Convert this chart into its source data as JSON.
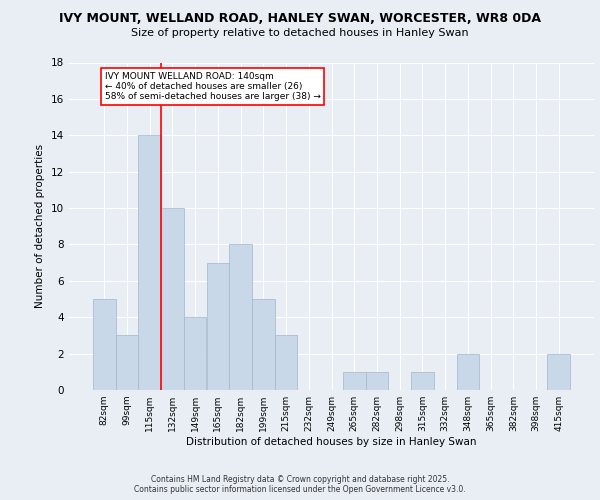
{
  "title_line1": "IVY MOUNT, WELLAND ROAD, HANLEY SWAN, WORCESTER, WR8 0DA",
  "title_line2": "Size of property relative to detached houses in Hanley Swan",
  "xlabel": "Distribution of detached houses by size in Hanley Swan",
  "ylabel": "Number of detached properties",
  "categories": [
    "82sqm",
    "99sqm",
    "115sqm",
    "132sqm",
    "149sqm",
    "165sqm",
    "182sqm",
    "199sqm",
    "215sqm",
    "232sqm",
    "249sqm",
    "265sqm",
    "282sqm",
    "298sqm",
    "315sqm",
    "332sqm",
    "348sqm",
    "365sqm",
    "382sqm",
    "398sqm",
    "415sqm"
  ],
  "values": [
    5,
    3,
    14,
    10,
    4,
    7,
    8,
    5,
    3,
    0,
    0,
    1,
    1,
    0,
    1,
    0,
    2,
    0,
    0,
    0,
    2
  ],
  "bar_color": "#c8d8e8",
  "bar_edge_color": "#a0b8cc",
  "red_line_x": 2.5,
  "annotation_text": "IVY MOUNT WELLAND ROAD: 140sqm\n← 40% of detached houses are smaller (26)\n58% of semi-detached houses are larger (38) →",
  "ylim": [
    0,
    18
  ],
  "yticks": [
    0,
    2,
    4,
    6,
    8,
    10,
    12,
    14,
    16,
    18
  ],
  "background_color": "#e8eef4",
  "grid_color": "white",
  "footer_line1": "Contains HM Land Registry data © Crown copyright and database right 2025.",
  "footer_line2": "Contains public sector information licensed under the Open Government Licence v3.0."
}
